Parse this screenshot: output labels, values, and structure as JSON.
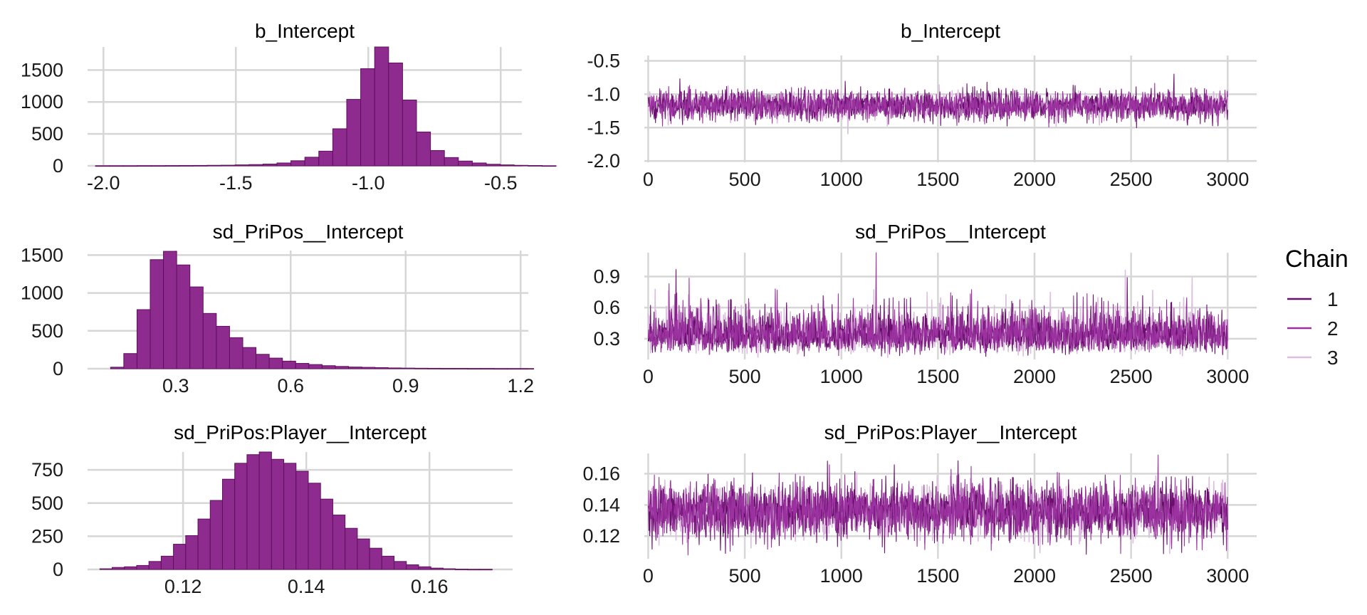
{
  "colors": {
    "hist_fill": "#8e2b8e",
    "hist_edge": "#5e0f5e",
    "grid": "#d6d6d6"
  },
  "legend": {
    "title": "Chain",
    "items": [
      {
        "label": "1",
        "color": "#6a0f6e"
      },
      {
        "label": "2",
        "color": "#9b32a0"
      },
      {
        "label": "3",
        "color": "#dcbfdf"
      }
    ]
  },
  "chart_data": [
    {
      "type": "bar",
      "title": "b_Intercept",
      "xlim": [
        -2.06,
        -0.42
      ],
      "ylim": [
        0,
        1860
      ],
      "xticks": [
        -2.0,
        -1.5,
        -1.0,
        -0.5
      ],
      "xtick_labels": [
        "-2.0",
        "-1.5",
        "-1.0",
        "-0.5"
      ],
      "yticks": [
        0,
        500,
        1000,
        1500
      ],
      "ytick_labels": [
        "0",
        "500",
        "1000",
        "1500"
      ],
      "bin_start": -2.03,
      "bin_width": 0.0527,
      "values": [
        2,
        2,
        2,
        3,
        3,
        4,
        5,
        6,
        8,
        10,
        15,
        20,
        28,
        45,
        80,
        135,
        230,
        580,
        1040,
        1520,
        1860,
        1610,
        1030,
        530,
        240,
        130,
        75,
        45,
        25,
        15,
        8,
        5,
        2
      ]
    },
    {
      "type": "line",
      "title": "b_Intercept",
      "xlim": [
        -20,
        3150
      ],
      "ylim": [
        -2.02,
        -0.42
      ],
      "xticks": [
        0,
        500,
        1000,
        1500,
        2000,
        2500,
        3000
      ],
      "xtick_labels": [
        "0",
        "500",
        "1000",
        "1500",
        "2000",
        "2500",
        "3000"
      ],
      "yticks": [
        -2.0,
        -1.5,
        -1.0,
        -0.5
      ],
      "ytick_labels": [
        "-2.0",
        "-1.5",
        "-1.0",
        "-0.5"
      ],
      "n_iter": 3000,
      "series_summary": [
        {
          "name": "1",
          "mean": -1.17,
          "sd": 0.11
        },
        {
          "name": "2",
          "mean": -1.17,
          "sd": 0.11
        },
        {
          "name": "3",
          "mean": -1.17,
          "sd": 0.09
        }
      ]
    },
    {
      "type": "bar",
      "title": "sd_PriPos__Intercept",
      "xlim": [
        0.07,
        1.22
      ],
      "ylim": [
        0,
        1560
      ],
      "xticks": [
        0.3,
        0.6,
        0.9,
        1.2
      ],
      "xtick_labels": [
        "0.3",
        "0.6",
        "0.9",
        "1.2"
      ],
      "yticks": [
        0,
        500,
        1000,
        1500
      ],
      "ytick_labels": [
        "0",
        "500",
        "1000",
        "1500"
      ],
      "bin_start": 0.13,
      "bin_width": 0.0345,
      "values": [
        20,
        200,
        780,
        1440,
        1550,
        1370,
        1080,
        730,
        560,
        410,
        280,
        190,
        140,
        100,
        70,
        55,
        40,
        30,
        22,
        18,
        14,
        10,
        8,
        6,
        5,
        4,
        4,
        3,
        3,
        2,
        2,
        2
      ]
    },
    {
      "type": "line",
      "title": "sd_PriPos__Intercept",
      "xlim": [
        -20,
        3150
      ],
      "ylim": [
        0.1,
        1.13
      ],
      "xticks": [
        0,
        500,
        1000,
        1500,
        2000,
        2500,
        3000
      ],
      "xtick_labels": [
        "0",
        "500",
        "1000",
        "1500",
        "2000",
        "2500",
        "3000"
      ],
      "yticks": [
        0.3,
        0.6,
        0.9
      ],
      "ytick_labels": [
        "0.3",
        "0.6",
        "0.9"
      ],
      "n_iter": 3000,
      "series_summary": [
        {
          "name": "1",
          "mean": 0.33,
          "sd": 0.11
        },
        {
          "name": "2",
          "mean": 0.34,
          "sd": 0.11
        },
        {
          "name": "3",
          "mean": 0.33,
          "sd": 0.1
        }
      ]
    },
    {
      "type": "bar",
      "title": "sd_PriPos:Player__Intercept",
      "xlim": [
        0.1045,
        0.1735
      ],
      "ylim": [
        0,
        885
      ],
      "xticks": [
        0.12,
        0.14,
        0.16
      ],
      "xtick_labels": [
        "0.12",
        "0.14",
        "0.16"
      ],
      "yticks": [
        0,
        250,
        500,
        750
      ],
      "ytick_labels": [
        "0",
        "250",
        "500",
        "750"
      ],
      "bin_start": 0.1065,
      "bin_width": 0.00199,
      "values": [
        5,
        15,
        20,
        30,
        60,
        100,
        190,
        255,
        380,
        520,
        680,
        800,
        865,
        885,
        830,
        800,
        740,
        650,
        530,
        410,
        310,
        230,
        160,
        100,
        60,
        35,
        20,
        10,
        5,
        2,
        1,
        1
      ]
    },
    {
      "type": "line",
      "title": "sd_PriPos:Player__Intercept",
      "xlim": [
        -20,
        3150
      ],
      "ylim": [
        0.1055,
        0.173
      ],
      "xticks": [
        0,
        500,
        1000,
        1500,
        2000,
        2500,
        3000
      ],
      "xtick_labels": [
        "0",
        "500",
        "1000",
        "1500",
        "2000",
        "2500",
        "3000"
      ],
      "yticks": [
        0.12,
        0.14,
        0.16
      ],
      "ytick_labels": [
        "0.12",
        "0.14",
        "0.16"
      ],
      "n_iter": 3000,
      "series_summary": [
        {
          "name": "1",
          "mean": 0.136,
          "sd": 0.009
        },
        {
          "name": "2",
          "mean": 0.136,
          "sd": 0.009
        },
        {
          "name": "3",
          "mean": 0.136,
          "sd": 0.008
        }
      ]
    }
  ]
}
